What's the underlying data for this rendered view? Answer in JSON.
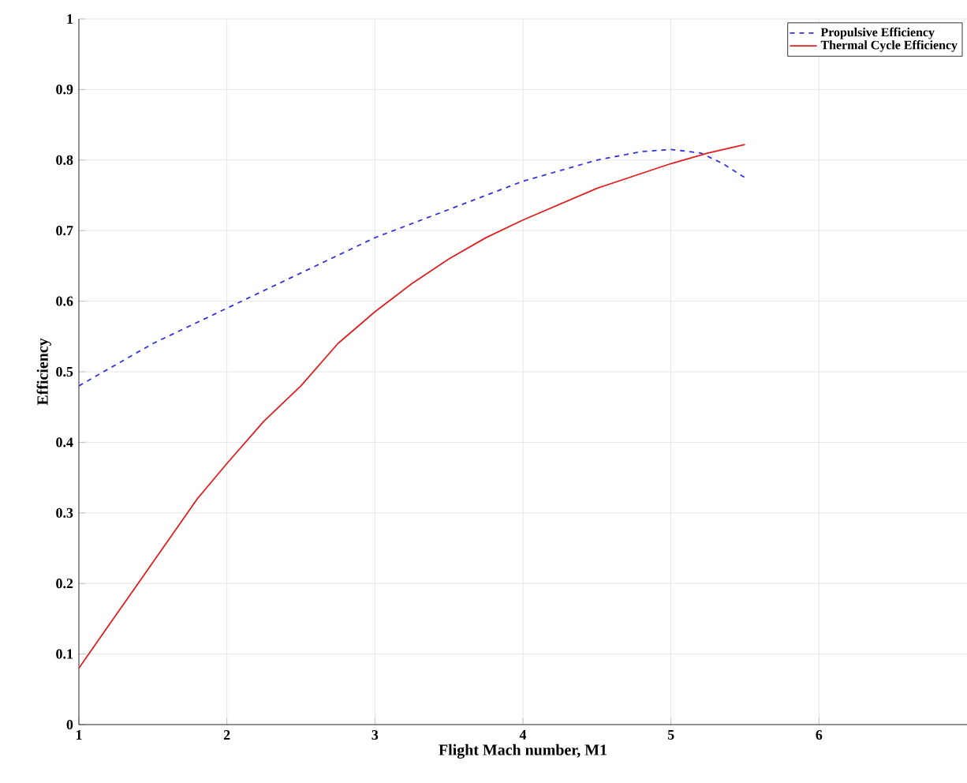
{
  "chart_data": {
    "type": "line",
    "xlabel": "Flight Mach number, M1",
    "ylabel": "Efficiency",
    "xlim": [
      1,
      7
    ],
    "xticks": [
      1,
      2,
      3,
      4,
      5,
      6
    ],
    "ylim": [
      0,
      1
    ],
    "yticks": [
      0,
      0.1,
      0.2,
      0.3,
      0.4,
      0.5,
      0.6,
      0.7,
      0.8,
      0.9,
      1
    ],
    "grid": true,
    "legend": "top right",
    "series": [
      {
        "name": "Propulsive Efficiency",
        "color": "#3333dd",
        "line_style": "dashed",
        "x": [
          1,
          1.5,
          2,
          2.5,
          3,
          3.5,
          4,
          4.5,
          4.8,
          5,
          5.2,
          5.35,
          5.5
        ],
        "values": [
          0.48,
          0.54,
          0.59,
          0.64,
          0.69,
          0.73,
          0.77,
          0.8,
          0.812,
          0.815,
          0.81,
          0.795,
          0.775
        ]
      },
      {
        "name": "Thermal Cycle Efficiency",
        "color": "#e02020",
        "line_style": "solid",
        "x": [
          1,
          1.2,
          1.4,
          1.6,
          1.8,
          2,
          2.25,
          2.5,
          2.75,
          3,
          3.25,
          3.5,
          3.75,
          4,
          4.5,
          5,
          5.25,
          5.5
        ],
        "values": [
          0.08,
          0.14,
          0.2,
          0.26,
          0.32,
          0.37,
          0.43,
          0.48,
          0.54,
          0.585,
          0.625,
          0.66,
          0.69,
          0.715,
          0.76,
          0.795,
          0.81,
          0.822
        ]
      }
    ]
  }
}
